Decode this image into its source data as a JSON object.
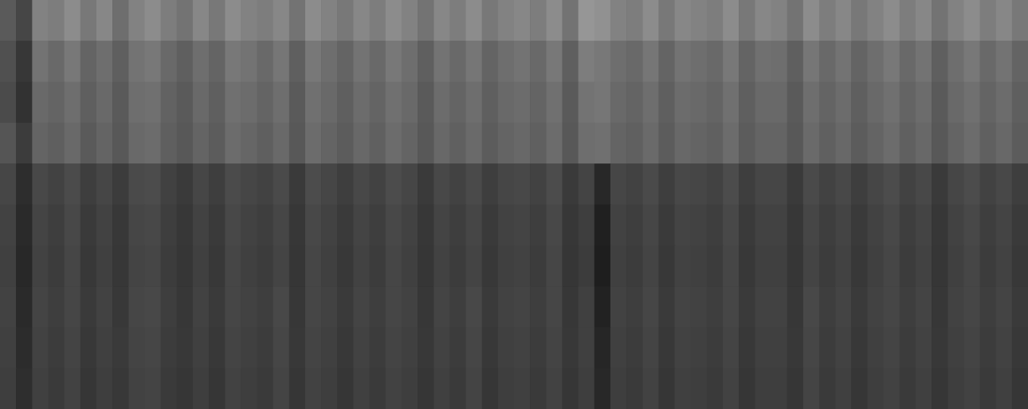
{
  "chart_data": {
    "type": "heatmap",
    "tick_labels": false,
    "cells": [
      [
        90,
        70,
        130,
        125,
        140,
        120,
        135,
        110,
        130,
        140,
        125,
        115,
        135,
        120,
        140,
        130,
        125,
        135,
        115,
        140,
        130,
        120,
        135,
        125,
        140,
        130,
        115,
        135,
        125,
        140,
        120,
        130,
        135,
        125,
        140,
        115,
        150,
        145,
        130,
        125,
        140,
        120,
        135,
        130,
        125,
        140,
        120,
        135,
        130,
        115,
        140,
        125,
        135,
        120,
        130,
        140,
        125,
        135,
        115,
        130,
        140,
        125,
        135,
        120
      ],
      [
        80,
        55,
        115,
        105,
        120,
        100,
        110,
        95,
        115,
        120,
        105,
        95,
        110,
        100,
        120,
        115,
        105,
        118,
        95,
        120,
        110,
        100,
        115,
        105,
        120,
        110,
        95,
        115,
        105,
        118,
        100,
        110,
        115,
        105,
        120,
        95,
        125,
        120,
        110,
        105,
        118,
        100,
        115,
        110,
        105,
        120,
        100,
        112,
        110,
        95,
        118,
        105,
        115,
        100,
        110,
        120,
        105,
        115,
        95,
        110,
        120,
        105,
        115,
        100
      ],
      [
        75,
        50,
        105,
        100,
        110,
        95,
        105,
        90,
        110,
        112,
        98,
        90,
        105,
        95,
        112,
        108,
        100,
        110,
        90,
        112,
        105,
        95,
        108,
        100,
        112,
        105,
        90,
        108,
        100,
        110,
        95,
        105,
        108,
        100,
        112,
        90,
        115,
        118,
        105,
        100,
        110,
        95,
        108,
        105,
        100,
        112,
        95,
        105,
        105,
        90,
        110,
        100,
        108,
        95,
        105,
        112,
        100,
        108,
        90,
        105,
        112,
        100,
        108,
        95
      ],
      [
        85,
        60,
        100,
        95,
        105,
        90,
        100,
        88,
        105,
        108,
        95,
        88,
        100,
        92,
        108,
        102,
        95,
        105,
        88,
        108,
        100,
        92,
        104,
        96,
        108,
        100,
        88,
        104,
        96,
        106,
        92,
        100,
        104,
        96,
        108,
        88,
        110,
        112,
        100,
        96,
        106,
        92,
        104,
        100,
        96,
        108,
        92,
        100,
        100,
        88,
        106,
        96,
        104,
        92,
        100,
        108,
        96,
        104,
        88,
        100,
        108,
        96,
        104,
        92
      ],
      [
        70,
        45,
        72,
        66,
        75,
        62,
        70,
        60,
        74,
        76,
        65,
        58,
        70,
        62,
        75,
        70,
        66,
        74,
        58,
        76,
        70,
        62,
        72,
        66,
        76,
        70,
        58,
        72,
        66,
        74,
        62,
        70,
        72,
        66,
        76,
        58,
        68,
        40,
        70,
        66,
        74,
        62,
        72,
        70,
        66,
        76,
        62,
        70,
        70,
        58,
        74,
        66,
        72,
        62,
        70,
        76,
        66,
        72,
        58,
        70,
        76,
        66,
        72,
        62
      ],
      [
        66,
        42,
        68,
        62,
        72,
        58,
        66,
        56,
        70,
        72,
        62,
        55,
        66,
        58,
        72,
        66,
        62,
        70,
        55,
        72,
        66,
        58,
        68,
        62,
        72,
        66,
        55,
        68,
        62,
        70,
        58,
        66,
        68,
        62,
        72,
        55,
        62,
        32,
        66,
        62,
        70,
        58,
        68,
        66,
        62,
        72,
        58,
        66,
        66,
        55,
        70,
        62,
        68,
        58,
        66,
        72,
        62,
        68,
        55,
        66,
        72,
        62,
        68,
        58
      ],
      [
        64,
        40,
        66,
        60,
        70,
        56,
        64,
        55,
        68,
        70,
        60,
        54,
        64,
        56,
        70,
        64,
        60,
        68,
        54,
        70,
        64,
        56,
        66,
        60,
        70,
        64,
        54,
        66,
        60,
        68,
        56,
        64,
        66,
        60,
        70,
        54,
        60,
        30,
        64,
        60,
        68,
        56,
        66,
        64,
        60,
        70,
        56,
        64,
        64,
        54,
        68,
        60,
        66,
        56,
        64,
        70,
        60,
        66,
        54,
        64,
        70,
        60,
        66,
        56
      ],
      [
        66,
        42,
        68,
        62,
        70,
        58,
        66,
        56,
        70,
        72,
        62,
        55,
        66,
        58,
        70,
        66,
        62,
        72,
        55,
        70,
        66,
        58,
        68,
        62,
        70,
        66,
        55,
        68,
        62,
        72,
        58,
        66,
        68,
        62,
        70,
        55,
        64,
        34,
        66,
        62,
        70,
        58,
        68,
        66,
        62,
        70,
        58,
        66,
        66,
        55,
        72,
        62,
        68,
        58,
        66,
        70,
        62,
        68,
        55,
        66,
        70,
        62,
        68,
        58
      ],
      [
        64,
        44,
        66,
        60,
        68,
        56,
        64,
        58,
        68,
        70,
        60,
        56,
        64,
        56,
        68,
        64,
        60,
        70,
        56,
        68,
        64,
        56,
        66,
        60,
        68,
        64,
        56,
        66,
        60,
        70,
        56,
        64,
        66,
        60,
        68,
        56,
        64,
        38,
        64,
        60,
        68,
        56,
        66,
        64,
        60,
        68,
        56,
        64,
        64,
        56,
        70,
        60,
        66,
        56,
        64,
        68,
        60,
        66,
        56,
        64,
        68,
        60,
        66,
        56
      ],
      [
        62,
        46,
        64,
        58,
        66,
        54,
        62,
        56,
        66,
        68,
        58,
        54,
        62,
        54,
        66,
        62,
        58,
        68,
        54,
        66,
        62,
        54,
        64,
        58,
        66,
        62,
        54,
        64,
        58,
        68,
        54,
        62,
        64,
        58,
        66,
        54,
        62,
        40,
        62,
        58,
        66,
        54,
        64,
        62,
        58,
        66,
        54,
        62,
        62,
        54,
        68,
        58,
        64,
        54,
        62,
        66,
        58,
        64,
        54,
        62,
        66,
        58,
        64,
        54
      ]
    ]
  }
}
